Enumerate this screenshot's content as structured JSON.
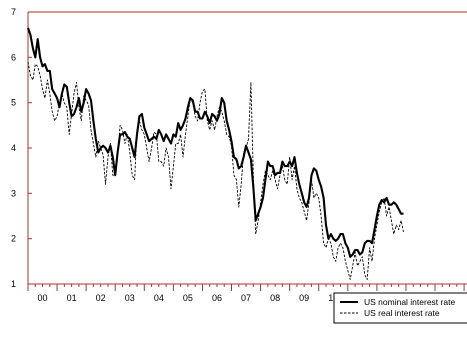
{
  "chart_data": {
    "type": "line",
    "title": "",
    "xlabel": "",
    "ylabel": "",
    "xlim": [
      0,
      15.1
    ],
    "ylim": [
      1,
      7
    ],
    "yticks": [
      1,
      2,
      3,
      4,
      5,
      6,
      7
    ],
    "xtick_labels": [
      "00",
      "01",
      "02",
      "03",
      "04",
      "05",
      "06",
      "07",
      "08",
      "09",
      "10",
      "11",
      "12",
      "13",
      "14"
    ],
    "grid": false,
    "legend_position": "bottom-right",
    "colors": {
      "frame": "#b03030",
      "series": "#000000"
    },
    "series": [
      {
        "name": "US nominal interest rate",
        "style": "solid",
        "points": [
          [
            0.0,
            6.65
          ],
          [
            0.083,
            6.5
          ],
          [
            0.167,
            6.2
          ],
          [
            0.25,
            6.0
          ],
          [
            0.333,
            6.4
          ],
          [
            0.417,
            6.0
          ],
          [
            0.5,
            5.8
          ],
          [
            0.583,
            5.85
          ],
          [
            0.667,
            5.7
          ],
          [
            0.75,
            5.7
          ],
          [
            0.833,
            5.3
          ],
          [
            0.917,
            5.2
          ],
          [
            1.0,
            5.1
          ],
          [
            1.083,
            4.9
          ],
          [
            1.167,
            5.2
          ],
          [
            1.25,
            5.4
          ],
          [
            1.333,
            5.35
          ],
          [
            1.417,
            5.0
          ],
          [
            1.5,
            4.7
          ],
          [
            1.583,
            4.75
          ],
          [
            1.667,
            4.9
          ],
          [
            1.75,
            5.1
          ],
          [
            1.833,
            4.8
          ],
          [
            1.917,
            5.0
          ],
          [
            2.0,
            5.3
          ],
          [
            2.083,
            5.2
          ],
          [
            2.167,
            5.05
          ],
          [
            2.25,
            4.6
          ],
          [
            2.333,
            4.2
          ],
          [
            2.417,
            3.9
          ],
          [
            2.5,
            4.0
          ],
          [
            2.583,
            4.05
          ],
          [
            2.667,
            4.0
          ],
          [
            2.75,
            3.9
          ],
          [
            2.833,
            4.05
          ],
          [
            2.917,
            3.8
          ],
          [
            3.0,
            3.4
          ],
          [
            3.083,
            3.9
          ],
          [
            3.167,
            4.3
          ],
          [
            3.25,
            4.3
          ],
          [
            3.333,
            4.35
          ],
          [
            3.417,
            4.25
          ],
          [
            3.5,
            4.2
          ],
          [
            3.583,
            4.0
          ],
          [
            3.667,
            3.8
          ],
          [
            3.75,
            4.3
          ],
          [
            3.833,
            4.7
          ],
          [
            3.917,
            4.75
          ],
          [
            4.0,
            4.45
          ],
          [
            4.083,
            4.3
          ],
          [
            4.167,
            4.15
          ],
          [
            4.25,
            4.2
          ],
          [
            4.333,
            4.25
          ],
          [
            4.417,
            4.2
          ],
          [
            4.5,
            4.4
          ],
          [
            4.583,
            4.3
          ],
          [
            4.667,
            4.15
          ],
          [
            4.75,
            4.3
          ],
          [
            4.833,
            4.2
          ],
          [
            4.917,
            4.1
          ],
          [
            5.0,
            4.3
          ],
          [
            5.083,
            4.25
          ],
          [
            5.167,
            4.55
          ],
          [
            5.25,
            4.4
          ],
          [
            5.333,
            4.5
          ],
          [
            5.417,
            4.65
          ],
          [
            5.5,
            4.9
          ],
          [
            5.583,
            5.1
          ],
          [
            5.667,
            5.05
          ],
          [
            5.75,
            4.8
          ],
          [
            5.833,
            4.8
          ],
          [
            5.917,
            4.65
          ],
          [
            6.0,
            4.65
          ],
          [
            6.083,
            4.8
          ],
          [
            6.167,
            4.7
          ],
          [
            6.25,
            4.55
          ],
          [
            6.333,
            4.75
          ],
          [
            6.417,
            4.7
          ],
          [
            6.5,
            4.6
          ],
          [
            6.583,
            4.75
          ],
          [
            6.667,
            5.1
          ],
          [
            6.75,
            5.0
          ],
          [
            6.833,
            4.6
          ],
          [
            6.917,
            4.4
          ],
          [
            7.0,
            4.15
          ],
          [
            7.083,
            3.8
          ],
          [
            7.167,
            3.75
          ],
          [
            7.25,
            3.55
          ],
          [
            7.333,
            3.6
          ],
          [
            7.417,
            3.8
          ],
          [
            7.5,
            4.05
          ],
          [
            7.583,
            3.9
          ],
          [
            7.667,
            3.75
          ],
          [
            7.75,
            3.15
          ],
          [
            7.833,
            2.4
          ],
          [
            7.917,
            2.55
          ],
          [
            8.0,
            2.7
          ],
          [
            8.083,
            2.9
          ],
          [
            8.167,
            3.3
          ],
          [
            8.25,
            3.7
          ],
          [
            8.333,
            3.6
          ],
          [
            8.417,
            3.6
          ],
          [
            8.5,
            3.4
          ],
          [
            8.583,
            3.45
          ],
          [
            8.667,
            3.45
          ],
          [
            8.75,
            3.7
          ],
          [
            8.833,
            3.6
          ],
          [
            8.917,
            3.6
          ],
          [
            9.0,
            3.7
          ],
          [
            9.083,
            3.6
          ],
          [
            9.167,
            3.8
          ],
          [
            9.25,
            3.45
          ],
          [
            9.333,
            3.2
          ],
          [
            9.417,
            3.0
          ],
          [
            9.5,
            2.8
          ],
          [
            9.583,
            2.7
          ],
          [
            9.667,
            2.9
          ],
          [
            9.75,
            3.4
          ],
          [
            9.833,
            3.55
          ],
          [
            9.917,
            3.5
          ],
          [
            10.0,
            3.3
          ],
          [
            10.083,
            3.15
          ],
          [
            10.167,
            2.9
          ],
          [
            10.25,
            2.3
          ],
          [
            10.333,
            2.0
          ],
          [
            10.417,
            2.1
          ],
          [
            10.5,
            2.0
          ],
          [
            10.583,
            1.95
          ],
          [
            10.667,
            2.0
          ],
          [
            10.75,
            2.1
          ],
          [
            10.833,
            2.1
          ],
          [
            10.917,
            1.9
          ],
          [
            11.0,
            1.8
          ],
          [
            11.083,
            1.6
          ],
          [
            11.167,
            1.65
          ],
          [
            11.25,
            1.75
          ],
          [
            11.333,
            1.75
          ],
          [
            11.417,
            1.65
          ],
          [
            11.5,
            1.7
          ],
          [
            11.583,
            1.9
          ],
          [
            11.667,
            1.95
          ],
          [
            11.75,
            1.95
          ],
          [
            11.833,
            1.9
          ],
          [
            11.917,
            2.2
          ],
          [
            12.0,
            2.5
          ],
          [
            12.083,
            2.75
          ],
          [
            12.167,
            2.85
          ],
          [
            12.25,
            2.8
          ],
          [
            12.333,
            2.9
          ],
          [
            12.417,
            2.75
          ],
          [
            12.5,
            2.75
          ],
          [
            12.583,
            2.8
          ],
          [
            12.667,
            2.75
          ],
          [
            12.75,
            2.65
          ],
          [
            12.833,
            2.55
          ],
          [
            12.917,
            2.55
          ]
        ]
      },
      {
        "name": "US real interest rate",
        "style": "dashed",
        "points": [
          [
            0.0,
            5.9
          ],
          [
            0.083,
            5.6
          ],
          [
            0.167,
            5.5
          ],
          [
            0.25,
            5.85
          ],
          [
            0.333,
            5.8
          ],
          [
            0.417,
            5.6
          ],
          [
            0.5,
            5.3
          ],
          [
            0.583,
            5.1
          ],
          [
            0.667,
            5.5
          ],
          [
            0.75,
            5.2
          ],
          [
            0.833,
            4.8
          ],
          [
            0.917,
            4.6
          ],
          [
            1.0,
            4.7
          ],
          [
            1.083,
            5.0
          ],
          [
            1.167,
            5.2
          ],
          [
            1.25,
            5.0
          ],
          [
            1.333,
            4.9
          ],
          [
            1.417,
            4.3
          ],
          [
            1.5,
            4.75
          ],
          [
            1.583,
            5.2
          ],
          [
            1.667,
            5.45
          ],
          [
            1.75,
            4.9
          ],
          [
            1.833,
            4.6
          ],
          [
            1.917,
            5.15
          ],
          [
            2.0,
            5.05
          ],
          [
            2.083,
            4.95
          ],
          [
            2.167,
            4.4
          ],
          [
            2.25,
            4.1
          ],
          [
            2.333,
            3.8
          ],
          [
            2.417,
            4.15
          ],
          [
            2.5,
            4.0
          ],
          [
            2.583,
            3.85
          ],
          [
            2.667,
            3.2
          ],
          [
            2.75,
            3.8
          ],
          [
            2.833,
            4.1
          ],
          [
            2.917,
            3.4
          ],
          [
            3.0,
            3.4
          ],
          [
            3.083,
            3.8
          ],
          [
            3.167,
            4.5
          ],
          [
            3.25,
            4.4
          ],
          [
            3.333,
            4.1
          ],
          [
            3.417,
            4.3
          ],
          [
            3.5,
            3.9
          ],
          [
            3.583,
            3.4
          ],
          [
            3.667,
            3.3
          ],
          [
            3.75,
            4.4
          ],
          [
            3.833,
            4.6
          ],
          [
            3.917,
            4.4
          ],
          [
            4.0,
            4.3
          ],
          [
            4.083,
            4.0
          ],
          [
            4.167,
            3.7
          ],
          [
            4.25,
            4.0
          ],
          [
            4.333,
            4.35
          ],
          [
            4.417,
            4.3
          ],
          [
            4.5,
            3.7
          ],
          [
            4.583,
            3.7
          ],
          [
            4.667,
            3.6
          ],
          [
            4.75,
            4.0
          ],
          [
            4.833,
            3.8
          ],
          [
            4.917,
            3.1
          ],
          [
            5.0,
            3.6
          ],
          [
            5.083,
            4.1
          ],
          [
            5.167,
            4.1
          ],
          [
            5.25,
            4.3
          ],
          [
            5.333,
            3.8
          ],
          [
            5.417,
            4.3
          ],
          [
            5.5,
            4.7
          ],
          [
            5.583,
            5.1
          ],
          [
            5.667,
            5.0
          ],
          [
            5.75,
            4.7
          ],
          [
            5.833,
            4.6
          ],
          [
            5.917,
            5.0
          ],
          [
            6.0,
            5.25
          ],
          [
            6.083,
            5.3
          ],
          [
            6.167,
            4.6
          ],
          [
            6.25,
            4.4
          ],
          [
            6.333,
            4.6
          ],
          [
            6.417,
            4.4
          ],
          [
            6.5,
            4.7
          ],
          [
            6.583,
            4.9
          ],
          [
            6.667,
            4.8
          ],
          [
            6.75,
            4.6
          ],
          [
            6.833,
            4.3
          ],
          [
            6.917,
            4.25
          ],
          [
            7.0,
            4.05
          ],
          [
            7.083,
            3.4
          ],
          [
            7.167,
            3.3
          ],
          [
            7.25,
            2.7
          ],
          [
            7.333,
            3.2
          ],
          [
            7.417,
            3.9
          ],
          [
            7.5,
            4.0
          ],
          [
            7.583,
            4.2
          ],
          [
            7.667,
            5.45
          ],
          [
            7.75,
            3.4
          ],
          [
            7.833,
            2.1
          ],
          [
            7.917,
            2.4
          ],
          [
            8.0,
            2.8
          ],
          [
            8.083,
            3.2
          ],
          [
            8.167,
            3.5
          ],
          [
            8.25,
            3.4
          ],
          [
            8.333,
            3.3
          ],
          [
            8.417,
            3.5
          ],
          [
            8.5,
            3.3
          ],
          [
            8.583,
            3.1
          ],
          [
            8.667,
            3.4
          ],
          [
            8.75,
            3.6
          ],
          [
            8.833,
            3.3
          ],
          [
            8.917,
            3.2
          ],
          [
            9.0,
            3.8
          ],
          [
            9.083,
            3.3
          ],
          [
            9.167,
            3.6
          ],
          [
            9.25,
            3.1
          ],
          [
            9.333,
            2.9
          ],
          [
            9.417,
            2.8
          ],
          [
            9.5,
            2.6
          ],
          [
            9.583,
            2.4
          ],
          [
            9.667,
            2.8
          ],
          [
            9.75,
            3.3
          ],
          [
            9.833,
            2.9
          ],
          [
            9.917,
            3.0
          ],
          [
            10.0,
            2.9
          ],
          [
            10.083,
            2.5
          ],
          [
            10.167,
            1.9
          ],
          [
            10.25,
            1.8
          ],
          [
            10.333,
            2.0
          ],
          [
            10.417,
            1.9
          ],
          [
            10.5,
            1.6
          ],
          [
            10.583,
            1.5
          ],
          [
            10.667,
            1.8
          ],
          [
            10.75,
            1.9
          ],
          [
            10.833,
            1.8
          ],
          [
            10.917,
            1.5
          ],
          [
            11.0,
            1.3
          ],
          [
            11.083,
            1.1
          ],
          [
            11.167,
            1.4
          ],
          [
            11.25,
            1.7
          ],
          [
            11.333,
            1.4
          ],
          [
            11.417,
            1.5
          ],
          [
            11.5,
            1.6
          ],
          [
            11.583,
            1.2
          ],
          [
            11.667,
            1.1
          ],
          [
            11.75,
            1.8
          ],
          [
            11.833,
            1.5
          ],
          [
            11.917,
            2.0
          ],
          [
            12.0,
            2.3
          ],
          [
            12.083,
            2.6
          ],
          [
            12.167,
            2.8
          ],
          [
            12.25,
            2.9
          ],
          [
            12.333,
            2.5
          ],
          [
            12.417,
            2.7
          ],
          [
            12.5,
            2.4
          ],
          [
            12.583,
            2.1
          ],
          [
            12.667,
            2.3
          ],
          [
            12.75,
            2.2
          ],
          [
            12.833,
            2.4
          ],
          [
            12.917,
            2.15
          ]
        ]
      }
    ]
  }
}
